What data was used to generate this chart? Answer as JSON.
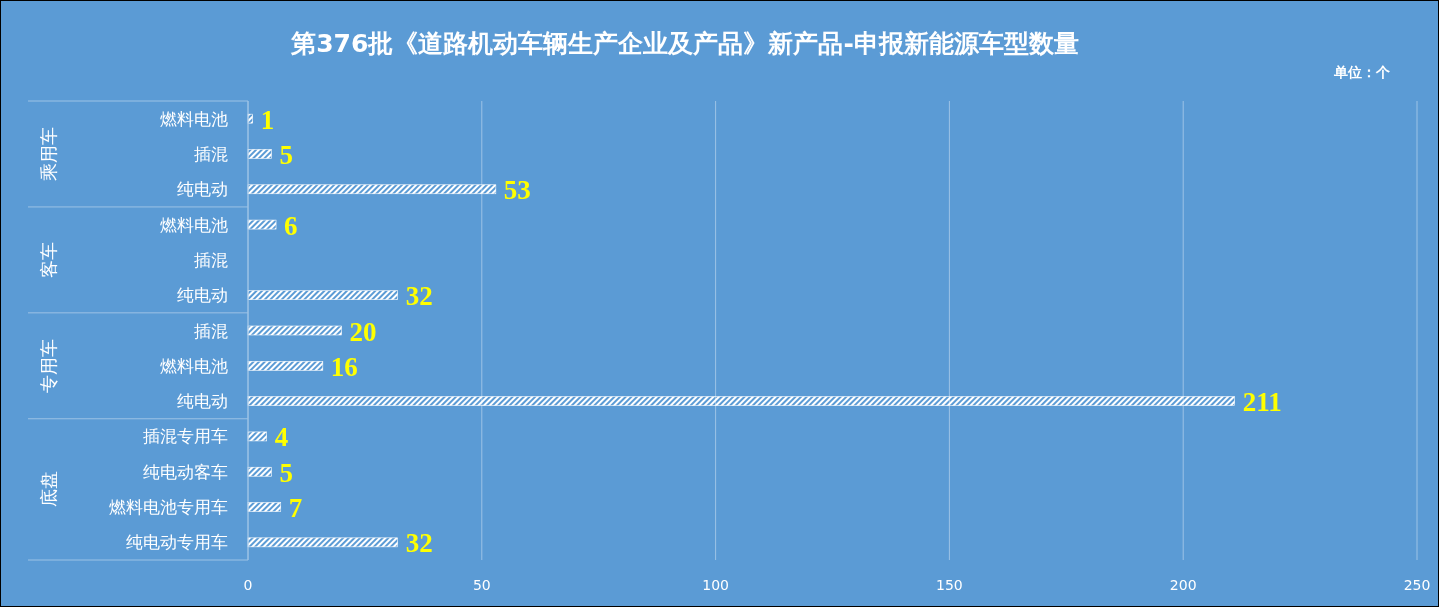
{
  "chart_data": {
    "type": "bar",
    "orientation": "horizontal",
    "title": "第376批《道路机动车辆生产企业及产品》新产品-申报新能源车型数量",
    "annotations": [
      "单位：个",
      "乘用车",
      "客车",
      "专用车",
      "底盘"
    ],
    "categories": [
      "燃料电池",
      "插混",
      "纯电动",
      "燃料电池",
      "插混",
      "纯电动",
      "插混",
      "燃料电池",
      "纯电动",
      "插混专用车",
      "纯电动客车",
      "燃料电池专用车",
      "纯电动专用车"
    ],
    "values": [
      1,
      5,
      53,
      6,
      null,
      32,
      20,
      16,
      211,
      4,
      5,
      7,
      32
    ],
    "color": "#ffffff",
    "data_labels": true,
    "xlim": [
      0,
      250
    ],
    "xticks": [
      0,
      50,
      100,
      150,
      200,
      250
    ],
    "grid": "x"
  }
}
